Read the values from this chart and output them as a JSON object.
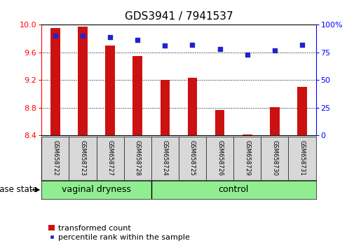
{
  "title": "GDS3941 / 7941537",
  "samples": [
    "GSM658722",
    "GSM658723",
    "GSM658727",
    "GSM658728",
    "GSM658724",
    "GSM658725",
    "GSM658726",
    "GSM658729",
    "GSM658730",
    "GSM658731"
  ],
  "red_values": [
    9.95,
    9.97,
    9.7,
    9.55,
    9.2,
    9.23,
    8.76,
    8.41,
    8.81,
    9.1
  ],
  "blue_values": [
    90,
    90,
    89,
    86,
    81,
    82,
    78,
    73,
    77,
    82
  ],
  "ylim_left": [
    8.4,
    10.0
  ],
  "ylim_right": [
    0,
    100
  ],
  "yticks_left": [
    8.4,
    8.8,
    9.2,
    9.6,
    10.0
  ],
  "yticks_right": [
    0,
    25,
    50,
    75,
    100
  ],
  "group_labels": [
    "vaginal dryness",
    "control"
  ],
  "bar_color": "#CC1111",
  "dot_color": "#2222CC",
  "bar_width": 0.35,
  "legend_bar_label": "transformed count",
  "legend_dot_label": "percentile rank within the sample",
  "disease_state_label": "disease state",
  "background_color": "#ffffff",
  "plot_bg_color": "#ffffff",
  "title_fontsize": 11,
  "tick_fontsize": 8,
  "label_fontsize": 8.5,
  "sample_fontsize": 6,
  "group_fontsize": 9,
  "green_color": "#90EE90"
}
